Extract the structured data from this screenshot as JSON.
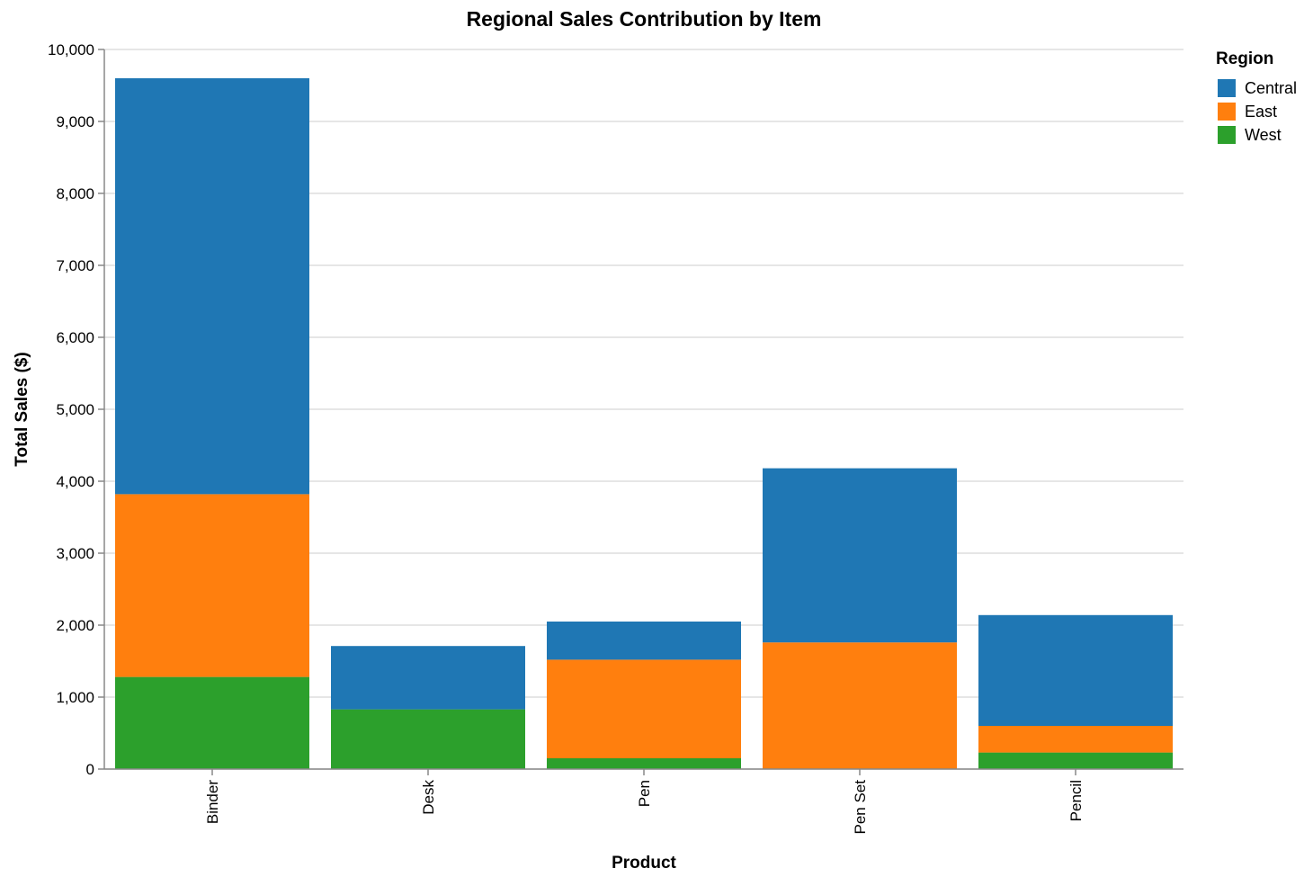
{
  "chart_data": {
    "type": "bar",
    "stacked": true,
    "title": "Regional Sales Contribution by Item",
    "xlabel": "Product",
    "ylabel": "Total Sales ($)",
    "ylim": [
      0,
      10000
    ],
    "yticks": [
      0,
      1000,
      2000,
      3000,
      4000,
      5000,
      6000,
      7000,
      8000,
      9000,
      10000
    ],
    "ytick_labels": [
      "0",
      "1,000",
      "2,000",
      "3,000",
      "4,000",
      "5,000",
      "6,000",
      "7,000",
      "8,000",
      "9,000",
      "10,000"
    ],
    "grid": true,
    "legend": {
      "title": "Region",
      "position": "top-right"
    },
    "categories": [
      "Binder",
      "Desk",
      "Pen",
      "Pen Set",
      "Pencil"
    ],
    "series": [
      {
        "name": "West",
        "color": "#2ca02c",
        "values": [
          1280,
          830,
          150,
          0,
          230
        ]
      },
      {
        "name": "East",
        "color": "#ff7f0e",
        "values": [
          2540,
          0,
          1370,
          1760,
          370
        ]
      },
      {
        "name": "Central",
        "color": "#1f77b4",
        "values": [
          5780,
          880,
          530,
          2420,
          1540
        ]
      }
    ],
    "legend_order": [
      "Central",
      "East",
      "West"
    ]
  }
}
